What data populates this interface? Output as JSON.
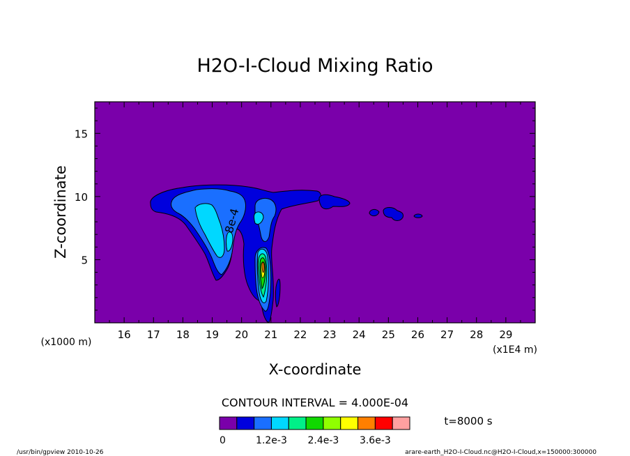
{
  "chart_data": {
    "type": "contour",
    "title": "H2O-I-Cloud Mixing Ratio",
    "xlabel": "X-coordinate",
    "ylabel": "Z-coordinate",
    "x_unit_label": "(x1E4 m)",
    "y_unit_label": "(x1000 m)",
    "x_range": [
      15.0,
      30.0
    ],
    "y_range": [
      0.0,
      17.5
    ],
    "x_ticks": [
      "16",
      "17",
      "18",
      "19",
      "20",
      "21",
      "22",
      "23",
      "24",
      "25",
      "26",
      "27",
      "28",
      "29"
    ],
    "y_ticks": [
      "5",
      "10",
      "15"
    ],
    "contour_interval_label": "CONTOUR INTERVAL = 4.000E-04",
    "time_label": "t=8000 s",
    "contour_label": "8e-4",
    "colorbar": {
      "colors": [
        "#7a00aa",
        "#0000dd",
        "#1a6fff",
        "#00d8ff",
        "#00f088",
        "#10d800",
        "#90ff00",
        "#ffff00",
        "#ff7f00",
        "#ff0000",
        "#ffa0a0"
      ],
      "labels": [
        "0",
        "1.2e-3",
        "2.4e-3",
        "3.6e-3"
      ],
      "label_values": [
        0,
        0.0012,
        0.0024,
        0.0036
      ],
      "interval": 0.0004
    },
    "background_color": "#7a00aa",
    "line_color": "#000000"
  },
  "footer": {
    "left": "/usr/bin/gpview  2010-10-26",
    "right": "arare-earth_H2O-I-Cloud.nc@H2O-I-Cloud,x=150000:300000"
  }
}
